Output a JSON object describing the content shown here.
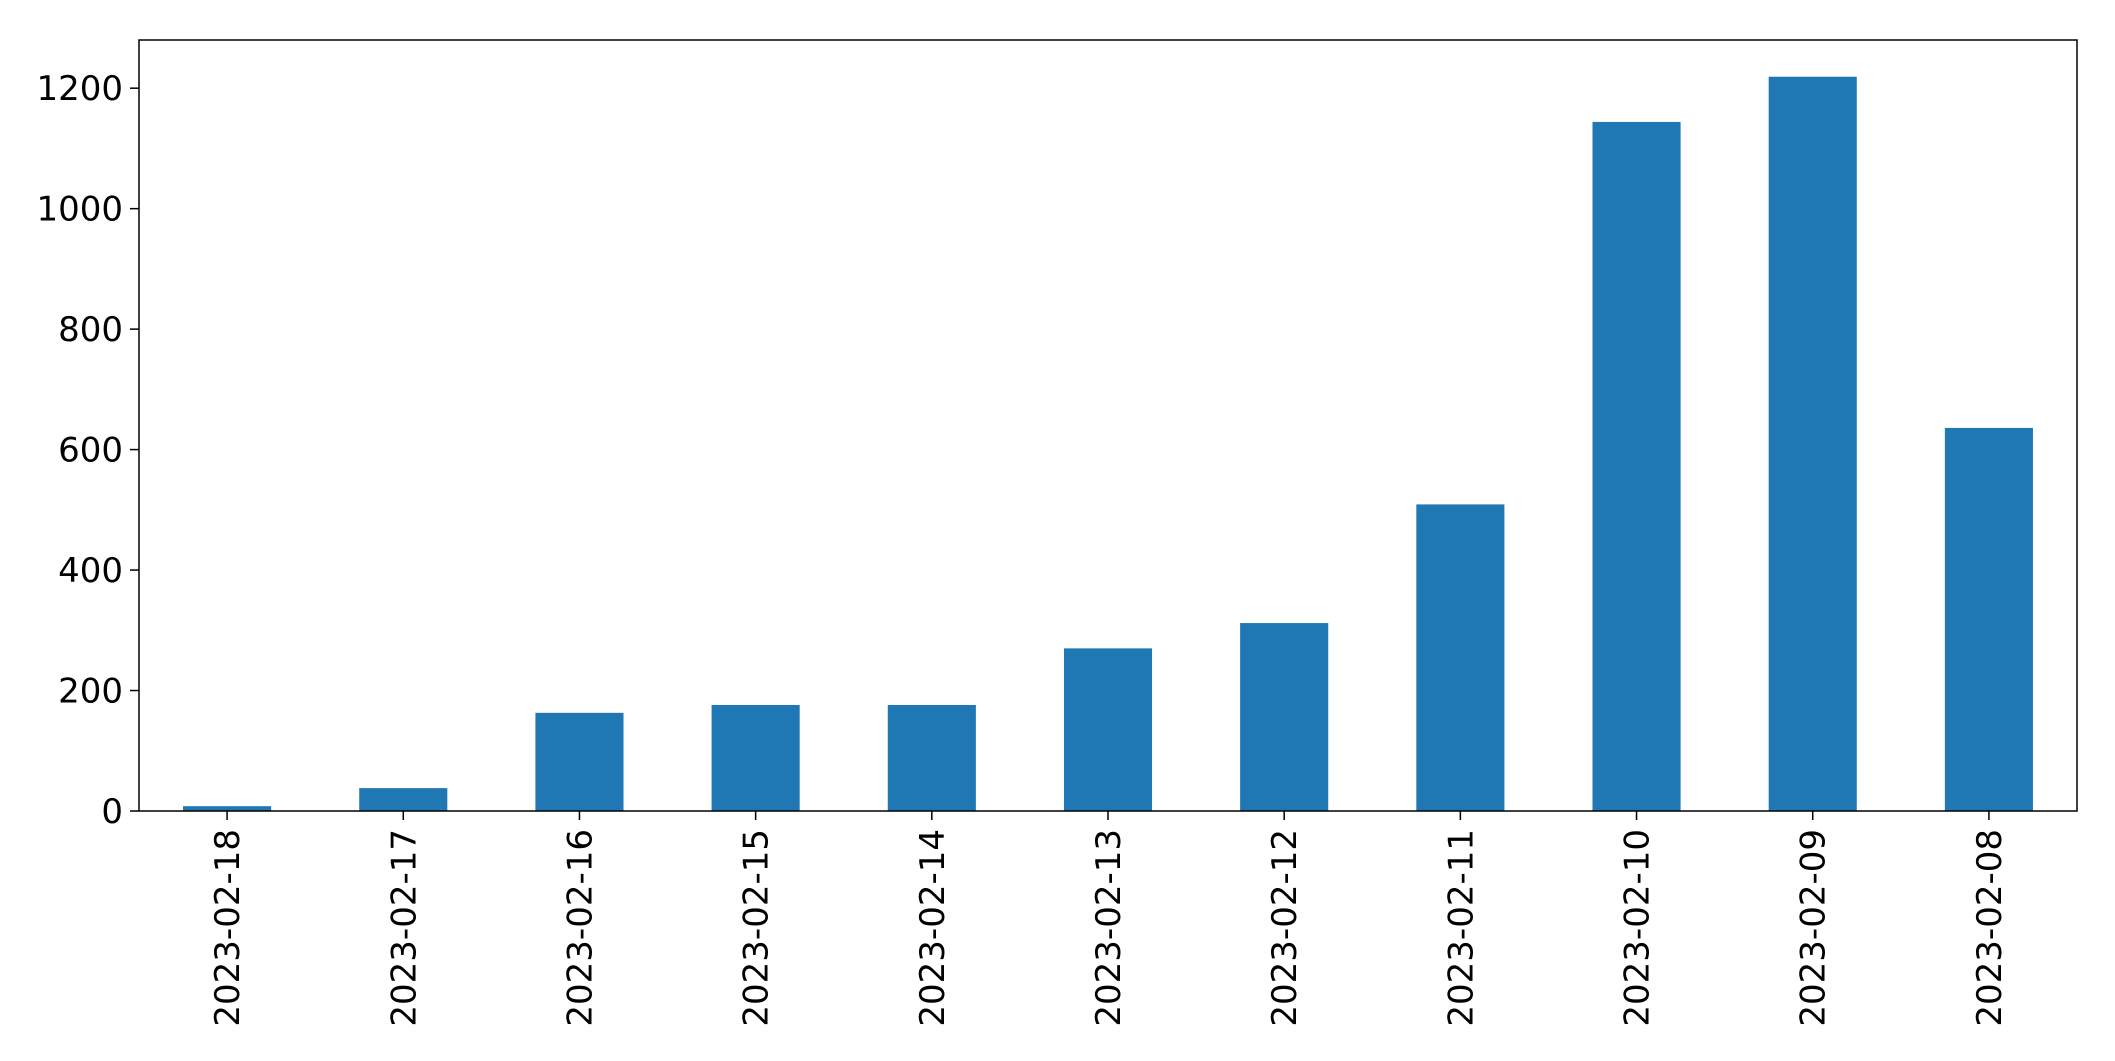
{
  "chart_data": {
    "type": "bar",
    "categories": [
      "2023-02-18",
      "2023-02-17",
      "2023-02-16",
      "2023-02-15",
      "2023-02-14",
      "2023-02-13",
      "2023-02-12",
      "2023-02-11",
      "2023-02-10",
      "2023-02-09",
      "2023-02-08"
    ],
    "values": [
      8,
      38,
      163,
      176,
      176,
      270,
      312,
      509,
      1144,
      1219,
      636
    ],
    "ylim": [
      0,
      1280
    ],
    "yticks": [
      0,
      200,
      400,
      600,
      800,
      1000,
      1200
    ],
    "bar_color": "#1f77b4",
    "grid": false,
    "legend": false,
    "title": "",
    "xlabel": "",
    "ylabel": ""
  }
}
